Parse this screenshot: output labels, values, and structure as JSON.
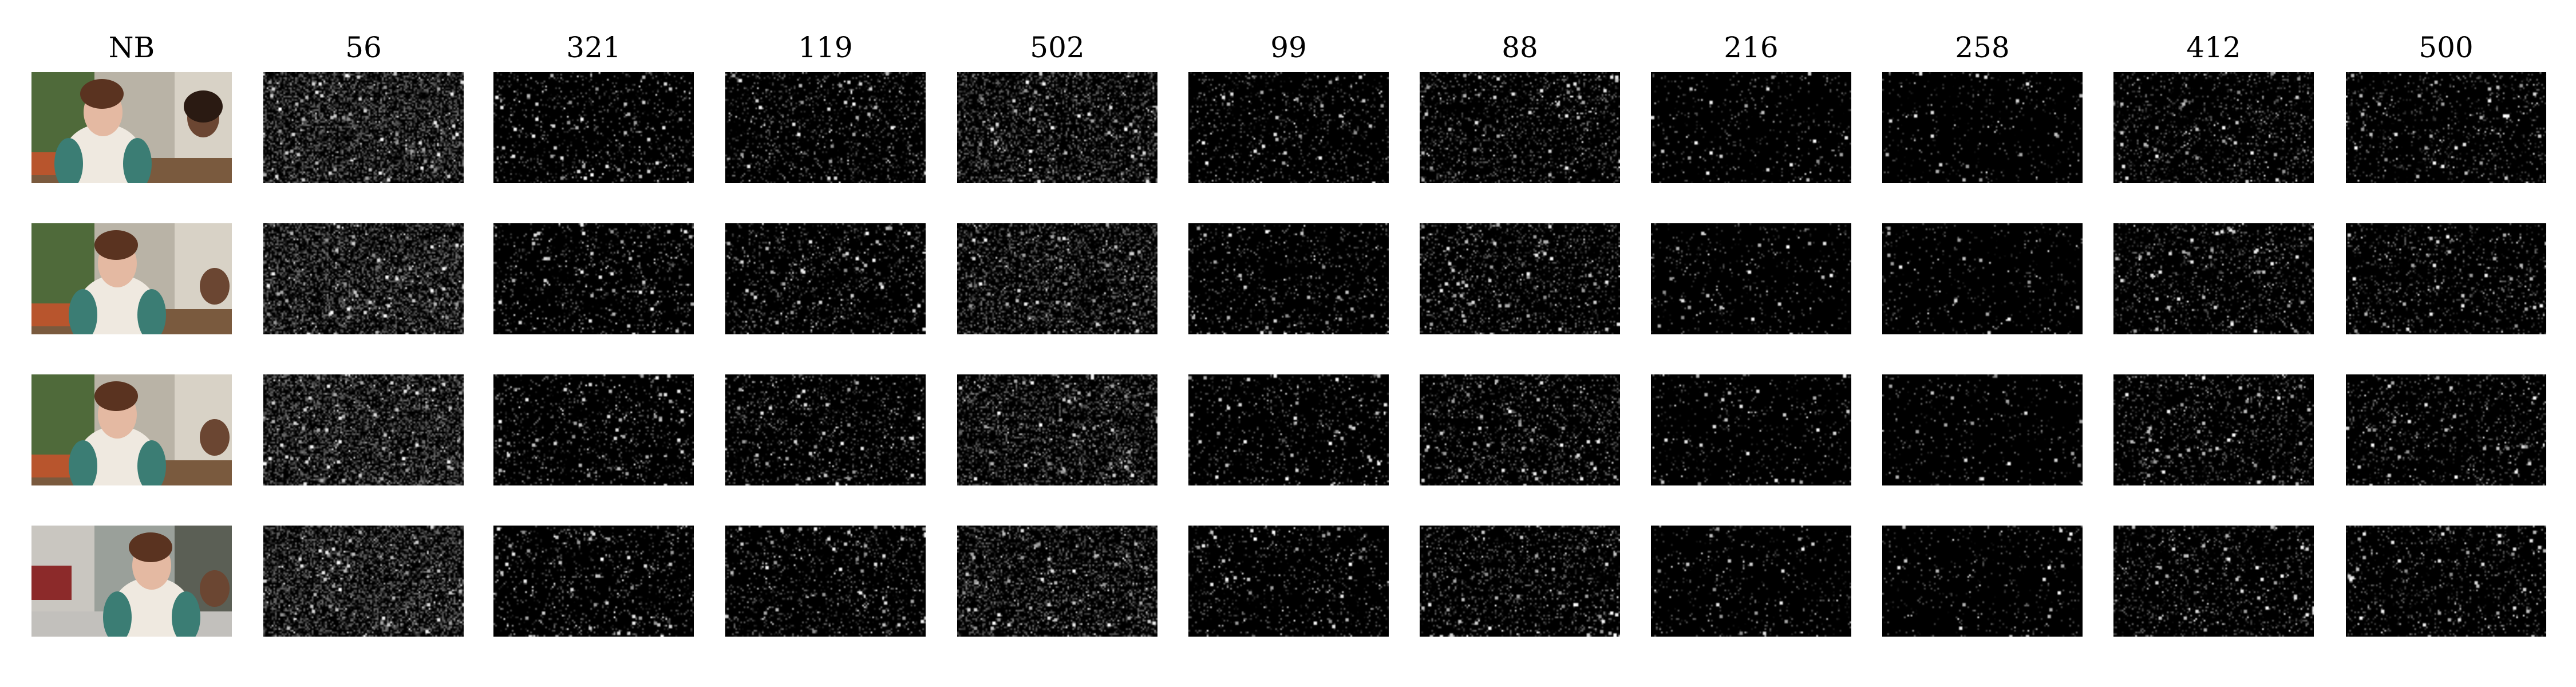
{
  "figure": {
    "columns": [
      {
        "label": "NB",
        "kind": "video-frame"
      },
      {
        "label": "56",
        "kind": "feature-map"
      },
      {
        "label": "321",
        "kind": "feature-map"
      },
      {
        "label": "119",
        "kind": "feature-map"
      },
      {
        "label": "502",
        "kind": "feature-map"
      },
      {
        "label": "99",
        "kind": "feature-map"
      },
      {
        "label": "88",
        "kind": "feature-map"
      },
      {
        "label": "216",
        "kind": "feature-map"
      },
      {
        "label": "258",
        "kind": "feature-map"
      },
      {
        "label": "412",
        "kind": "feature-map"
      },
      {
        "label": "500",
        "kind": "feature-map"
      }
    ],
    "row_count": 4,
    "colors": {
      "background": "#ffffff",
      "map_background": "#000000",
      "map_highlight": "#ffffff"
    }
  }
}
